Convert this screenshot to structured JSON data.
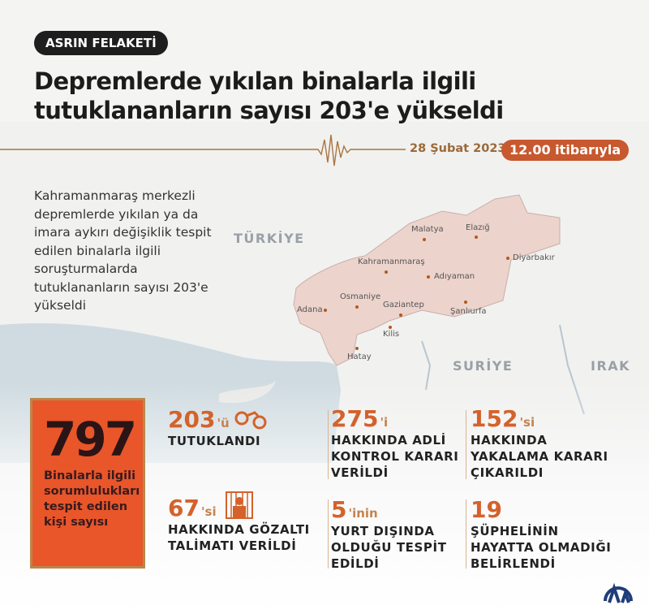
{
  "header": {
    "tag": "ASRIN FELAKETİ",
    "title_line1": "Depremlerde yıkılan binalarla ilgili",
    "title_line2": "tutuklananların sayısı 203'e yükseldi",
    "date": "28 Şubat 2023",
    "time": "12.00 itibarıyla"
  },
  "intro": "Kahramanmaraş merkezli depremlerde yıkılan ya da imara aykırı değişiklik tespit edilen binalarla ilgili soruşturmalarda tutuklananların sayısı 203'e yükseldi",
  "map": {
    "countries": [
      "TÜRKİYE",
      "SURİYE",
      "IRAK"
    ],
    "cities": [
      "Malatya",
      "Elazığ",
      "Diyarbakır",
      "Kahramanmaraş",
      "Adıyaman",
      "Osmaniye",
      "Adana",
      "Gaziantep",
      "Şanlıurfa",
      "Kilis",
      "Hatay"
    ]
  },
  "summary": {
    "value": "797",
    "label": "Binalarla ilgili sorumlulukları tespit edilen kişi sayısı"
  },
  "stats": [
    {
      "value": "203",
      "suffix": "'ü",
      "label": "TUTUKLANDI",
      "icon": "handcuffs-icon"
    },
    {
      "value": "275",
      "suffix": "'i",
      "label": "HAKKINDA ADLİ KONTROL KARARI VERİLDİ"
    },
    {
      "value": "152",
      "suffix": "'si",
      "label": "HAKKINDA YAKALAMA KARARI ÇIKARILDI"
    },
    {
      "value": "67",
      "suffix": "'si",
      "label": "HAKKINDA GÖZALTI TALİMATI VERİLDİ",
      "icon": "jail-icon"
    },
    {
      "value": "5",
      "suffix": "'inin",
      "label": "YURT DIŞINDA OLDUĞU TESPİT EDİLDİ"
    },
    {
      "value": "19",
      "suffix": "",
      "label": "ŞÜPHELİNİN HAYATTA OLMADIĞI BELİRLENDİ"
    }
  ],
  "colors": {
    "accent": "#d4622a",
    "box": "#e8562a",
    "region": "#ecd3cc",
    "sea": "#ccd9e0"
  },
  "logo": "AA"
}
